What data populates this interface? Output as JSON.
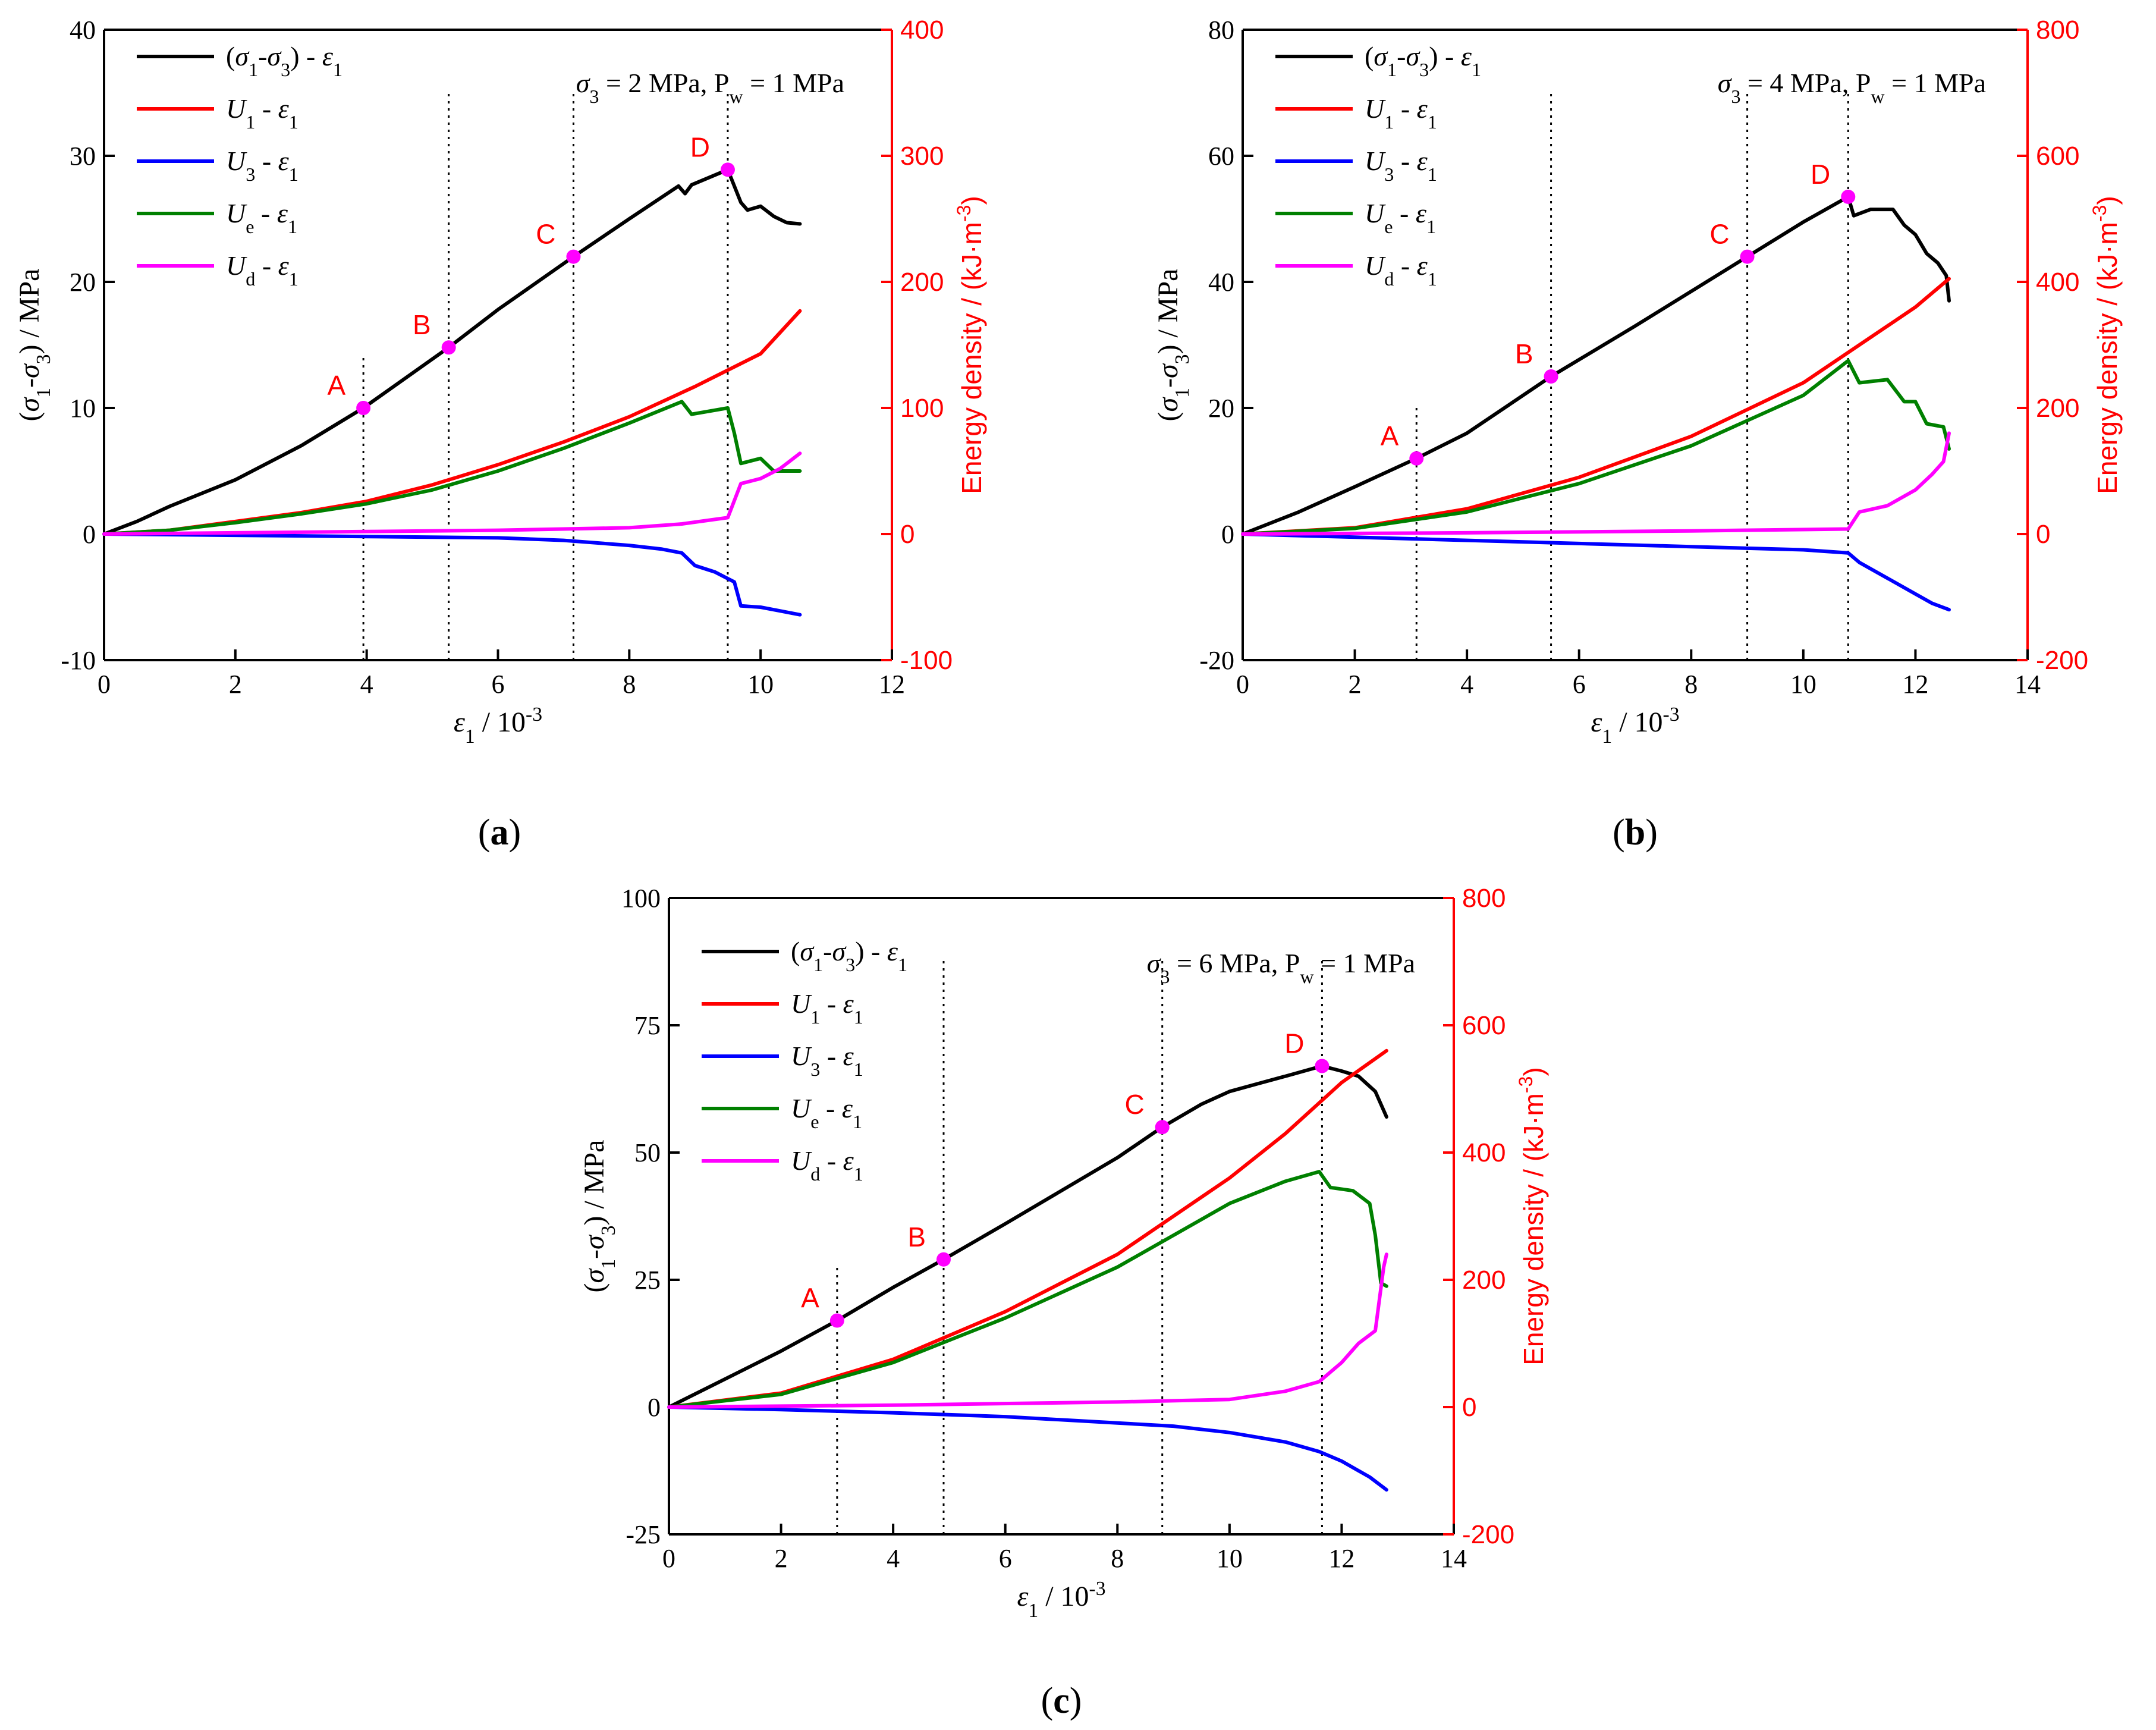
{
  "figure": {
    "panels": [
      {
        "id": "a",
        "panel_label": "a",
        "condition_prefix": "σ",
        "condition_sub": "3",
        "condition_mid": " = 2 MPa, P",
        "condition_sub2": "w",
        "condition_end": " = 1 MPa",
        "points": [
          {
            "label": "A",
            "x": 3.95,
            "y": 10.0
          },
          {
            "label": "B",
            "x": 5.25,
            "y": 14.8
          },
          {
            "label": "C",
            "x": 7.15,
            "y": 22.0
          },
          {
            "label": "D",
            "x": 9.5,
            "y": 28.9
          }
        ]
      },
      {
        "id": "b",
        "panel_label": "b",
        "condition_prefix": "σ",
        "condition_sub": "3",
        "condition_mid": " = 4 MPa, P",
        "condition_sub2": "w",
        "condition_end": " = 1 MPa",
        "points": [
          {
            "label": "A",
            "x": 3.1,
            "y": 12.0
          },
          {
            "label": "B",
            "x": 5.5,
            "y": 25.0
          },
          {
            "label": "C",
            "x": 9.0,
            "y": 44.0
          },
          {
            "label": "D",
            "x": 10.8,
            "y": 53.5
          }
        ]
      },
      {
        "id": "c",
        "panel_label": "c",
        "condition_prefix": "σ",
        "condition_sub": "3",
        "condition_mid": " = 6 MPa, P",
        "condition_sub2": "w",
        "condition_end": " = 1 MPa",
        "points": [
          {
            "label": "A",
            "x": 3.0,
            "y": 17.0
          },
          {
            "label": "B",
            "x": 4.9,
            "y": 29.0
          },
          {
            "label": "C",
            "x": 8.8,
            "y": 55.0
          },
          {
            "label": "D",
            "x": 11.65,
            "y": 67.0
          }
        ]
      }
    ],
    "legend": [
      {
        "key": "stress",
        "label": "(σ1-σ3) - ε1",
        "color": "#000000"
      },
      {
        "key": "U1",
        "label": "U1 - ε1",
        "color": "#ff0000"
      },
      {
        "key": "U3",
        "label": "U3 - ε1",
        "color": "#0000ff"
      },
      {
        "key": "Ue",
        "label": "Ue - ε1",
        "color": "#008000"
      },
      {
        "key": "Ud",
        "label": "Ud - ε1",
        "color": "#ff00ff"
      }
    ],
    "axis_titles": {
      "x": "ε1 / 10-3",
      "y_left": "(σ1-σ3) / MPa",
      "y_right": "Energy density / (kJ·m-3)"
    },
    "colors": {
      "stress": "#000000",
      "U1": "#ff0000",
      "U3": "#0000ff",
      "Ue": "#008000",
      "Ud": "#ff00ff",
      "energy_axis": "#ff0000",
      "marker": "#ff00ff"
    }
  },
  "chart_data": [
    {
      "type": "line",
      "title": "(a) σ3 = 2 MPa, Pw = 1 MPa",
      "xlabel": "ε1 / 10-3",
      "ylabel": "(σ1-σ3) / MPa",
      "y2label": "Energy density / (kJ·m-3)",
      "xlim": [
        0,
        12
      ],
      "ylim": [
        -10,
        40
      ],
      "y2lim": [
        -100,
        400
      ],
      "xticks": [
        0,
        2,
        4,
        6,
        8,
        10,
        12
      ],
      "yticks": [
        -10,
        0,
        10,
        20,
        30,
        40
      ],
      "y2ticks": [
        -100,
        0,
        100,
        200,
        300,
        400
      ],
      "markers": [
        3.95,
        5.25,
        7.15,
        9.5
      ],
      "series": [
        {
          "name": "(σ1-σ3) - ε1",
          "axis": "left",
          "x": [
            0,
            0.5,
            1,
            2,
            3,
            3.95,
            5.25,
            6,
            7.15,
            8,
            8.75,
            8.85,
            8.95,
            9.5,
            9.7,
            9.8,
            10,
            10.2,
            10.4,
            10.6
          ],
          "y": [
            0,
            1.0,
            2.2,
            4.3,
            7.0,
            10.0,
            14.8,
            17.8,
            22.0,
            25.0,
            27.6,
            27.0,
            27.7,
            28.9,
            26.3,
            25.7,
            26.0,
            25.2,
            24.7,
            24.6
          ]
        },
        {
          "name": "U1 - ε1",
          "axis": "right",
          "x": [
            0,
            1,
            2,
            3,
            4,
            5,
            6,
            7,
            8,
            9,
            10,
            10.6
          ],
          "y": [
            0,
            3,
            10,
            17,
            26,
            39,
            55,
            73,
            93,
            117,
            143,
            177
          ]
        },
        {
          "name": "U3 - ε1",
          "axis": "right",
          "x": [
            0,
            2,
            4,
            6,
            7,
            8,
            8.5,
            8.8,
            9.0,
            9.3,
            9.6,
            9.7,
            10,
            10.3,
            10.6
          ],
          "y": [
            0,
            -1,
            -2,
            -3,
            -5,
            -9,
            -12,
            -15,
            -25,
            -30,
            -38,
            -57,
            -58,
            -61,
            -64
          ]
        },
        {
          "name": "Ue - ε1",
          "axis": "right",
          "x": [
            0,
            1,
            2,
            3,
            4,
            5,
            6,
            7,
            8,
            8.8,
            8.95,
            9.5,
            9.6,
            9.7,
            10,
            10.2,
            10.6
          ],
          "y": [
            0,
            3,
            9,
            16,
            24,
            35,
            50,
            68,
            88,
            105,
            95,
            100,
            80,
            56,
            60,
            50,
            50
          ]
        },
        {
          "name": "Ud - ε1",
          "axis": "right",
          "x": [
            0,
            2,
            4,
            6,
            7,
            8,
            8.8,
            9.5,
            9.7,
            10,
            10.3,
            10.6
          ],
          "y": [
            0,
            1,
            2,
            3,
            4,
            5,
            8,
            13,
            40,
            44,
            52,
            64
          ]
        }
      ]
    },
    {
      "type": "line",
      "title": "(b) σ3 = 4 MPa, Pw = 1 MPa",
      "xlabel": "ε1 / 10-3",
      "ylabel": "(σ1-σ3) / MPa",
      "y2label": "Energy density / (kJ·m-3)",
      "xlim": [
        0,
        14
      ],
      "ylim": [
        -20,
        80
      ],
      "y2lim": [
        -200,
        800
      ],
      "xticks": [
        0,
        2,
        4,
        6,
        8,
        10,
        12,
        14
      ],
      "yticks": [
        -20,
        0,
        20,
        40,
        60,
        80
      ],
      "y2ticks": [
        -200,
        0,
        200,
        400,
        600,
        800
      ],
      "markers": [
        3.1,
        5.5,
        9.0,
        10.8
      ],
      "series": [
        {
          "name": "(σ1-σ3) - ε1",
          "axis": "left",
          "x": [
            0,
            1,
            2,
            3.1,
            4,
            5.5,
            7,
            8,
            9.0,
            10,
            10.8,
            10.9,
            11.2,
            11.6,
            11.8,
            12.0,
            12.2,
            12.4,
            12.55,
            12.6
          ],
          "y": [
            0,
            3.5,
            7.5,
            12.0,
            16.0,
            25.0,
            33.0,
            38.5,
            44.0,
            49.5,
            53.5,
            50.5,
            51.5,
            51.5,
            49.0,
            47.5,
            44.5,
            43.0,
            41.0,
            37.0
          ]
        },
        {
          "name": "U1 - ε1",
          "axis": "right",
          "x": [
            0,
            2,
            4,
            6,
            8,
            10,
            11,
            12,
            12.6
          ],
          "y": [
            0,
            10,
            40,
            90,
            155,
            240,
            300,
            360,
            405
          ]
        },
        {
          "name": "U3 - ε1",
          "axis": "right",
          "x": [
            0,
            2,
            4,
            6,
            8,
            10,
            10.8,
            11,
            11.5,
            12,
            12.3,
            12.6
          ],
          "y": [
            0,
            -5,
            -10,
            -15,
            -20,
            -25,
            -30,
            -45,
            -70,
            -95,
            -110,
            -120
          ]
        },
        {
          "name": "Ue - ε1",
          "axis": "right",
          "x": [
            0,
            2,
            4,
            6,
            8,
            10,
            10.8,
            11.0,
            11.5,
            11.8,
            12.0,
            12.2,
            12.5,
            12.6
          ],
          "y": [
            0,
            9,
            35,
            80,
            140,
            220,
            275,
            240,
            245,
            210,
            210,
            175,
            170,
            135
          ]
        },
        {
          "name": "Ud - ε1",
          "axis": "right",
          "x": [
            0,
            4,
            8,
            10.8,
            11,
            11.5,
            12,
            12.3,
            12.5,
            12.6
          ],
          "y": [
            0,
            2,
            5,
            8,
            35,
            45,
            70,
            95,
            115,
            160
          ]
        }
      ]
    },
    {
      "type": "line",
      "title": "(c) σ3 = 6 MPa, Pw = 1 MPa",
      "xlabel": "ε1 / 10-3",
      "ylabel": "(σ1-σ3) / MPa",
      "y2label": "Energy density / (kJ·m-3)",
      "xlim": [
        0,
        14
      ],
      "ylim": [
        -25,
        100
      ],
      "y2lim": [
        -200,
        800
      ],
      "xticks": [
        0,
        2,
        4,
        6,
        8,
        10,
        12,
        14
      ],
      "yticks": [
        -25,
        0,
        25,
        50,
        75,
        100
      ],
      "y2ticks": [
        -200,
        0,
        200,
        400,
        600,
        800
      ],
      "markers": [
        3.0,
        4.9,
        8.8,
        11.65
      ],
      "series": [
        {
          "name": "(σ1-σ3) - ε1",
          "axis": "left",
          "x": [
            0,
            1,
            2,
            3.0,
            4,
            4.9,
            6,
            7,
            8,
            8.8,
            9.5,
            10,
            10.5,
            11,
            11.65,
            12,
            12.3,
            12.6,
            12.8
          ],
          "y": [
            0,
            5.5,
            11.0,
            17.0,
            23.5,
            29.0,
            36.0,
            42.5,
            49.0,
            55.0,
            59.5,
            62.0,
            63.5,
            65.0,
            67.0,
            66.0,
            65.0,
            62.0,
            57.0
          ]
        },
        {
          "name": "U1 - ε1",
          "axis": "right",
          "x": [
            0,
            2,
            4,
            6,
            8,
            10,
            11,
            12,
            12.8
          ],
          "y": [
            0,
            22,
            75,
            150,
            240,
            360,
            430,
            510,
            560
          ]
        },
        {
          "name": "U3 - ε1",
          "axis": "right",
          "x": [
            0,
            2,
            4,
            6,
            8,
            9,
            10,
            11,
            11.6,
            12,
            12.5,
            12.8
          ],
          "y": [
            0,
            -4,
            -9,
            -15,
            -25,
            -30,
            -40,
            -55,
            -70,
            -85,
            -110,
            -130
          ]
        },
        {
          "name": "Ue - ε1",
          "axis": "right",
          "x": [
            0,
            2,
            4,
            6,
            8,
            10,
            11,
            11.6,
            11.8,
            12.2,
            12.5,
            12.6,
            12.7,
            12.8
          ],
          "y": [
            0,
            20,
            70,
            140,
            220,
            320,
            355,
            370,
            345,
            340,
            320,
            270,
            195,
            190
          ]
        },
        {
          "name": "Ud - ε1",
          "axis": "right",
          "x": [
            0,
            4,
            8,
            10,
            11,
            11.6,
            12,
            12.3,
            12.6,
            12.75,
            12.8
          ],
          "y": [
            0,
            3,
            8,
            12,
            25,
            40,
            70,
            100,
            120,
            220,
            240
          ]
        }
      ]
    }
  ]
}
